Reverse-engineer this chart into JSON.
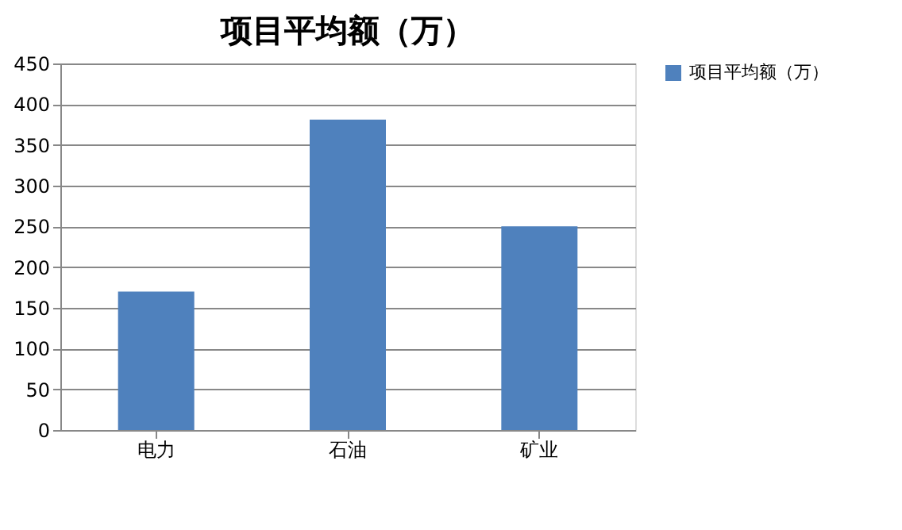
{
  "chart_data": {
    "type": "bar",
    "title": "项目平均额（万）",
    "categories": [
      "电力",
      "石油",
      "矿业"
    ],
    "series": [
      {
        "name": "项目平均额（万）",
        "color": "#4f81bd",
        "values": [
          170,
          381,
          250
        ]
      }
    ],
    "ylim": [
      0,
      450
    ],
    "yticks": [
      0,
      50,
      100,
      150,
      200,
      250,
      300,
      350,
      400,
      450
    ],
    "grid": "y",
    "legend": "right"
  }
}
